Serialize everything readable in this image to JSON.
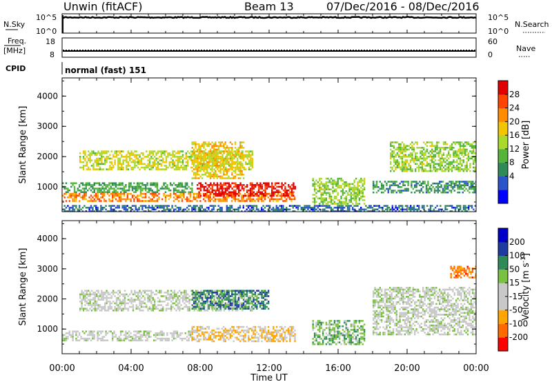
{
  "header": {
    "station": "Unwin (fitACF)",
    "beam": "Beam 13",
    "date_range": "07/Dec/2016 - 08/Dec/2016"
  },
  "chart_data": [
    {
      "type": "line",
      "panel": "noise",
      "left_label": "N.Sky",
      "right_label": "N.Search",
      "left_ticks": [
        "10^5",
        "10^0"
      ],
      "right_ticks": [
        "10^5",
        "10^0"
      ],
      "scale": "log",
      "series": [
        {
          "key": "nsky",
          "style": "solid",
          "values_note": "near top of range throughout"
        },
        {
          "key": "nsearch",
          "style": "dotted"
        }
      ]
    },
    {
      "type": "line",
      "panel": "frequency",
      "left_label_1": "Freq.",
      "left_label_2": "[MHz]",
      "right_label": "Nave",
      "left_ticks": [
        "18",
        "8"
      ],
      "right_ticks": [
        "60",
        "0"
      ],
      "ylim_left": [
        8,
        18
      ],
      "ylim_right": [
        0,
        60
      ],
      "series": [
        {
          "key": "freq",
          "style": "solid",
          "value": 11.2
        },
        {
          "key": "nave",
          "style": "dotted",
          "value": 22
        }
      ]
    },
    {
      "type": "heatmap",
      "panel": "cpid",
      "label": "CPID",
      "text": "normal (fast) 151"
    },
    {
      "type": "heatmap",
      "panel": "power",
      "ylabel": "Slant Range [km]",
      "yticks": [
        "4000",
        "3000",
        "2000",
        "1000"
      ],
      "ylim": [
        180,
        4600
      ],
      "colorbar_label": "Power [dB]",
      "colorbar_ticks": [
        "28",
        "24",
        "20",
        "16",
        "12",
        "8",
        "4"
      ],
      "colorbar_range": [
        0,
        30
      ],
      "colors": [
        "#0000ff",
        "#2a55c8",
        "#2e8b57",
        "#55b53a",
        "#a8d92c",
        "#f2c500",
        "#ff8c00",
        "#ff4500",
        "#e00000"
      ],
      "bands": [
        {
          "t0": 0.0,
          "t1": 13.5,
          "r0": 550,
          "r1": 800,
          "level": 22
        },
        {
          "t0": 0.0,
          "t1": 7.5,
          "r0": 850,
          "r1": 1150,
          "level": 10
        },
        {
          "t0": 7.8,
          "t1": 13.5,
          "r0": 700,
          "r1": 1150,
          "level": 28
        },
        {
          "t0": 1.0,
          "t1": 11.0,
          "r0": 1600,
          "r1": 2200,
          "level": 16
        },
        {
          "t0": 7.5,
          "t1": 10.5,
          "r0": 1300,
          "r1": 2500,
          "level": 18
        },
        {
          "t0": 14.5,
          "t1": 17.5,
          "r0": 450,
          "r1": 1300,
          "level": 14
        },
        {
          "t0": 18.0,
          "t1": 24.0,
          "r0": 800,
          "r1": 1200,
          "level": 9
        },
        {
          "t0": 19.0,
          "t1": 24.0,
          "r0": 1500,
          "r1": 2500,
          "level": 14
        },
        {
          "t0": 0.0,
          "t1": 24.0,
          "r0": 180,
          "r1": 400,
          "level": 6
        }
      ]
    },
    {
      "type": "heatmap",
      "panel": "velocity",
      "ylabel": "Slant Range [km]",
      "yticks": [
        "4000",
        "3000",
        "2000",
        "1000"
      ],
      "ylim": [
        180,
        4600
      ],
      "colorbar_label": "Velocity [m s",
      "colorbar_label_sup": "-1",
      "colorbar_label_end": "]",
      "colorbar_ticks": [
        "200",
        "100",
        "50",
        "15",
        "-15",
        "-50",
        "-100",
        "-200"
      ],
      "colorbar_range": [
        -250,
        250
      ],
      "colors": [
        "#ff0000",
        "#ff6a00",
        "#ffa500",
        "#c8c8c8",
        "#c8c8c8",
        "#7ac142",
        "#2e8b57",
        "#1e3ca0",
        "#0000c8"
      ],
      "bands": [
        {
          "t0": 0.0,
          "t1": 7.5,
          "r0": 600,
          "r1": 950,
          "level": 0
        },
        {
          "t0": 7.5,
          "t1": 13.5,
          "r0": 600,
          "r1": 1100,
          "level": -80
        },
        {
          "t0": 1.0,
          "t1": 11.0,
          "r0": 1600,
          "r1": 2300,
          "level": 0
        },
        {
          "t0": 7.5,
          "t1": 12.0,
          "r0": 1700,
          "r1": 2300,
          "level": 120
        },
        {
          "t0": 14.5,
          "t1": 17.5,
          "r0": 500,
          "r1": 1300,
          "level": 60
        },
        {
          "t0": 18.0,
          "t1": 24.0,
          "r0": 800,
          "r1": 2400,
          "level": 0
        },
        {
          "t0": 22.5,
          "t1": 24.0,
          "r0": 2700,
          "r1": 3100,
          "level": -150
        }
      ]
    }
  ],
  "xaxis": {
    "label": "Time UT",
    "ticks": [
      "00:00",
      "04:00",
      "08:00",
      "12:00",
      "16:00",
      "20:00",
      "00:00"
    ],
    "range_hours": [
      0,
      24
    ]
  }
}
